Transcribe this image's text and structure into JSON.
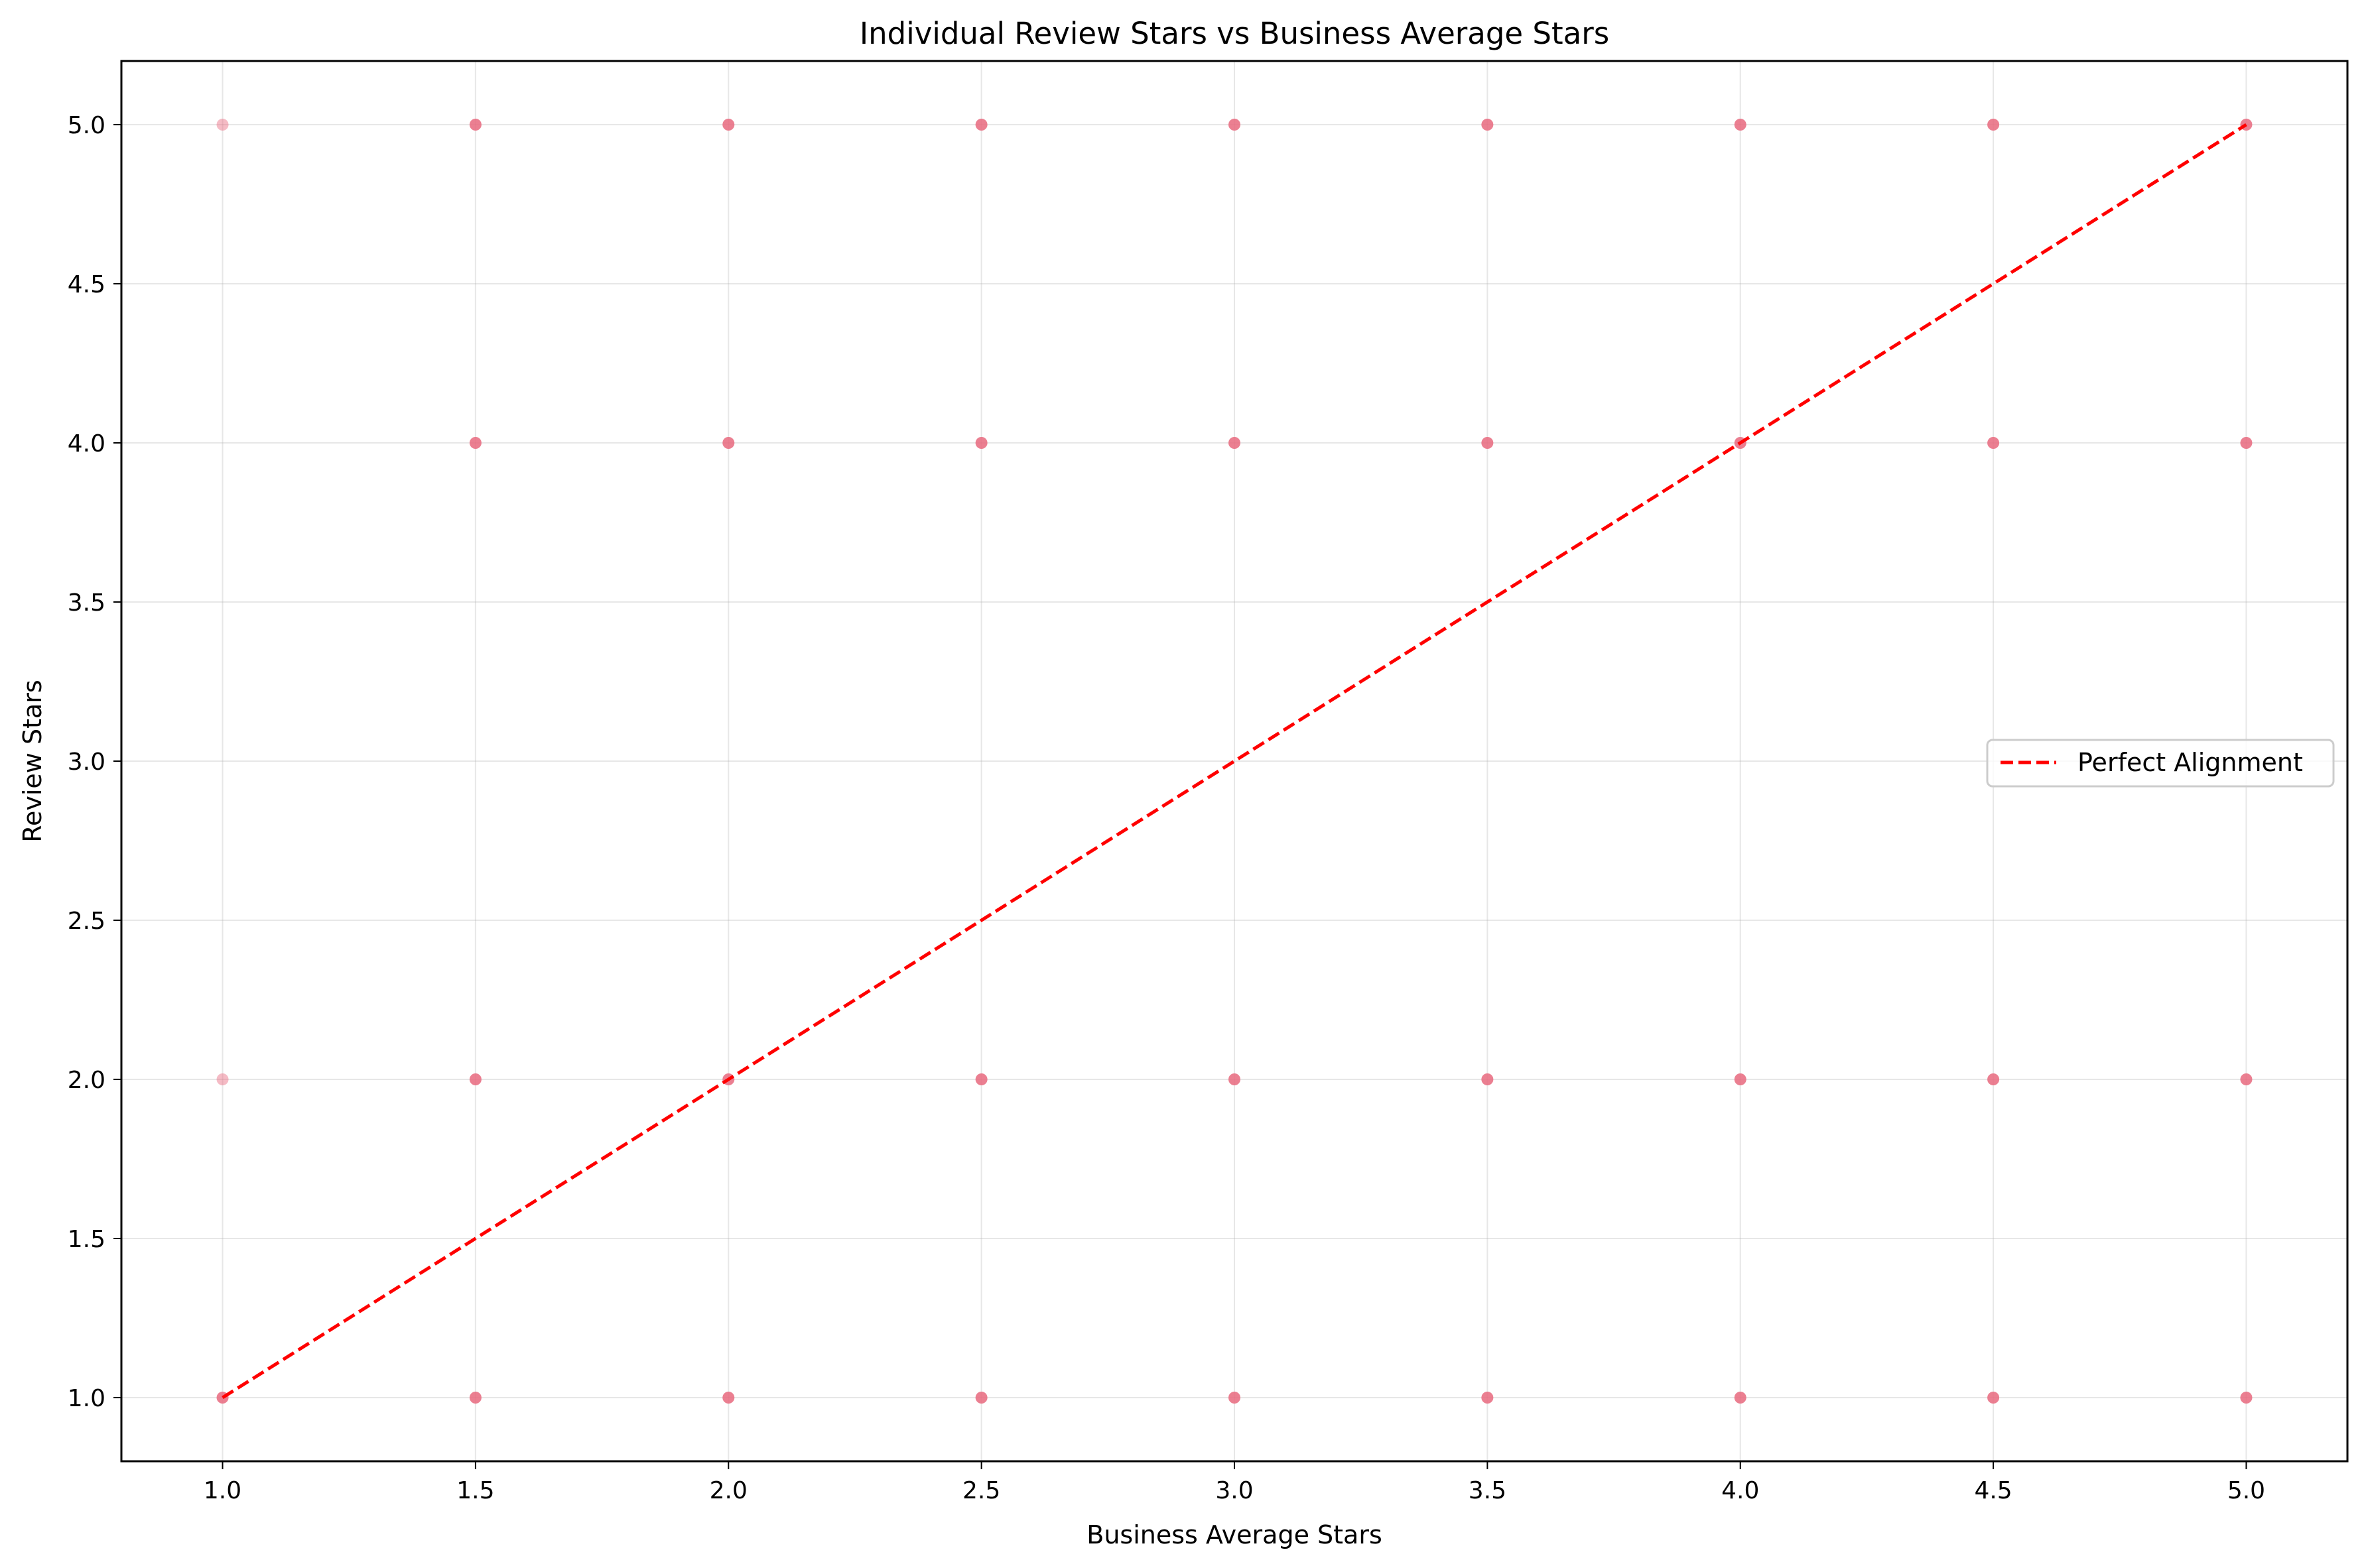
{
  "chart_data": {
    "type": "scatter",
    "title": "Individual Review Stars vs Business Average Stars",
    "xlabel": "Business Average Stars",
    "ylabel": "Review Stars",
    "xlim": [
      0.8,
      5.2
    ],
    "ylim": [
      0.8,
      5.2
    ],
    "xticks": [
      1.0,
      1.5,
      2.0,
      2.5,
      3.0,
      3.5,
      4.0,
      4.5,
      5.0
    ],
    "yticks": [
      1.0,
      1.5,
      2.0,
      2.5,
      3.0,
      3.5,
      4.0,
      4.5,
      5.0
    ],
    "xtick_labels": [
      "1.0",
      "1.5",
      "2.0",
      "2.5",
      "3.0",
      "3.5",
      "4.0",
      "4.5",
      "5.0"
    ],
    "ytick_labels": [
      "1.0",
      "1.5",
      "2.0",
      "2.5",
      "3.0",
      "3.5",
      "4.0",
      "4.5",
      "5.0"
    ],
    "grid": true,
    "legend_position": "center-right",
    "points_color": "#e8687e",
    "line_color": "#ff0000",
    "series": [
      {
        "kind": "scatter",
        "points": [
          {
            "x": 1.0,
            "y": 5.0,
            "opacity": 0.45
          },
          {
            "x": 1.0,
            "y": 2.0,
            "opacity": 0.45
          },
          {
            "x": 1.0,
            "y": 1.0,
            "opacity": 0.85
          },
          {
            "x": 1.5,
            "y": 5.0,
            "opacity": 0.85
          },
          {
            "x": 1.5,
            "y": 4.0,
            "opacity": 0.85
          },
          {
            "x": 1.5,
            "y": 2.0,
            "opacity": 0.85
          },
          {
            "x": 1.5,
            "y": 1.0,
            "opacity": 0.85
          },
          {
            "x": 2.0,
            "y": 5.0,
            "opacity": 0.85
          },
          {
            "x": 2.0,
            "y": 4.0,
            "opacity": 0.85
          },
          {
            "x": 2.0,
            "y": 2.0,
            "opacity": 0.85
          },
          {
            "x": 2.0,
            "y": 1.0,
            "opacity": 0.85
          },
          {
            "x": 2.5,
            "y": 5.0,
            "opacity": 0.85
          },
          {
            "x": 2.5,
            "y": 4.0,
            "opacity": 0.85
          },
          {
            "x": 2.5,
            "y": 2.0,
            "opacity": 0.85
          },
          {
            "x": 2.5,
            "y": 1.0,
            "opacity": 0.85
          },
          {
            "x": 3.0,
            "y": 5.0,
            "opacity": 0.85
          },
          {
            "x": 3.0,
            "y": 4.0,
            "opacity": 0.85
          },
          {
            "x": 3.0,
            "y": 2.0,
            "opacity": 0.85
          },
          {
            "x": 3.0,
            "y": 1.0,
            "opacity": 0.85
          },
          {
            "x": 3.5,
            "y": 5.0,
            "opacity": 0.85
          },
          {
            "x": 3.5,
            "y": 4.0,
            "opacity": 0.85
          },
          {
            "x": 3.5,
            "y": 2.0,
            "opacity": 0.85
          },
          {
            "x": 3.5,
            "y": 1.0,
            "opacity": 0.85
          },
          {
            "x": 4.0,
            "y": 5.0,
            "opacity": 0.85
          },
          {
            "x": 4.0,
            "y": 4.0,
            "opacity": 0.85
          },
          {
            "x": 4.0,
            "y": 2.0,
            "opacity": 0.85
          },
          {
            "x": 4.0,
            "y": 1.0,
            "opacity": 0.85
          },
          {
            "x": 4.5,
            "y": 5.0,
            "opacity": 0.85
          },
          {
            "x": 4.5,
            "y": 4.0,
            "opacity": 0.85
          },
          {
            "x": 4.5,
            "y": 2.0,
            "opacity": 0.85
          },
          {
            "x": 4.5,
            "y": 1.0,
            "opacity": 0.85
          },
          {
            "x": 5.0,
            "y": 5.0,
            "opacity": 0.85
          },
          {
            "x": 5.0,
            "y": 4.0,
            "opacity": 0.85
          },
          {
            "x": 5.0,
            "y": 2.0,
            "opacity": 0.85
          },
          {
            "x": 5.0,
            "y": 1.0,
            "opacity": 0.85
          }
        ]
      },
      {
        "kind": "line",
        "name": "Perfect Alignment",
        "style": "dashed",
        "x": [
          1.0,
          5.0
        ],
        "y": [
          1.0,
          5.0
        ]
      }
    ]
  }
}
